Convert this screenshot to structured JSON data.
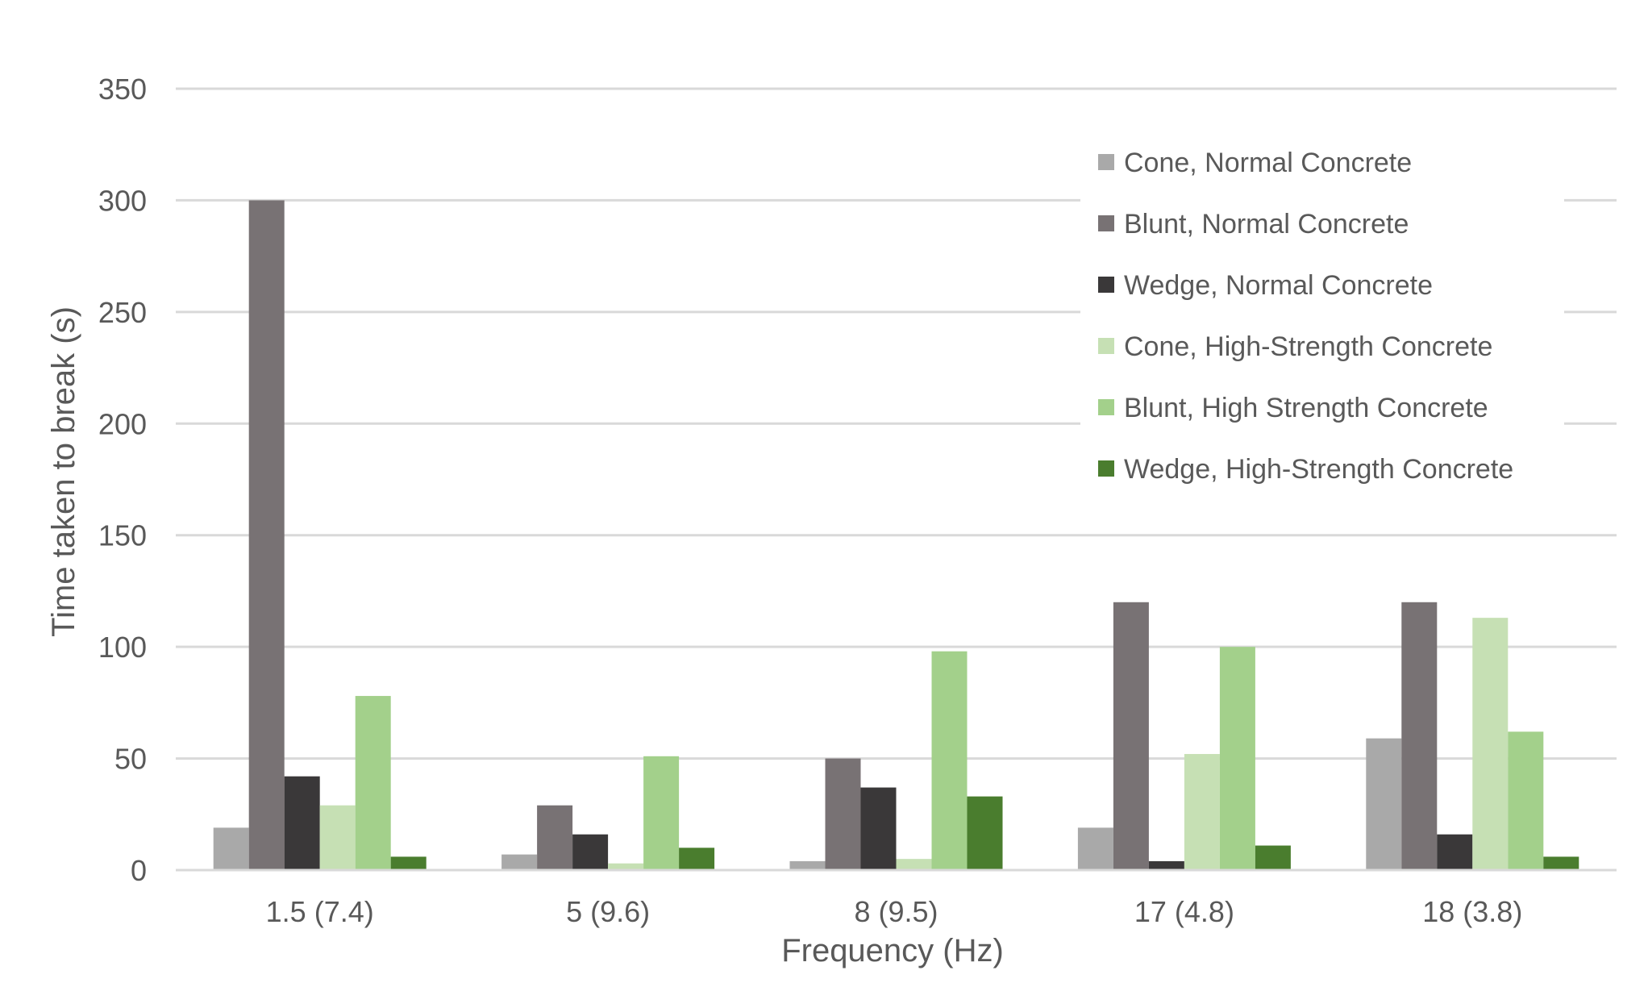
{
  "chart_data": {
    "type": "bar",
    "title": "",
    "xlabel": "Frequency (Hz)",
    "ylabel": "Time taken to break (s)",
    "ylim": [
      0,
      350
    ],
    "yticks": [
      0,
      50,
      100,
      150,
      200,
      250,
      300,
      350
    ],
    "grid": true,
    "legend_position": "top-right",
    "categories": [
      "1.5 (7.4)",
      "5 (9.6)",
      "8 (9.5)",
      "17 (4.8)",
      "18 (3.8)"
    ],
    "series": [
      {
        "name": "Cone, Normal Concrete",
        "color": "#a9a9a9",
        "values": [
          19,
          7,
          4,
          19,
          59
        ]
      },
      {
        "name": "Blunt, Normal Concrete",
        "color": "#787274",
        "values": [
          300,
          29,
          50,
          120,
          120
        ]
      },
      {
        "name": "Wedge, Normal Concrete",
        "color": "#3a3839",
        "values": [
          42,
          16,
          37,
          4,
          16
        ]
      },
      {
        "name": "Cone, High-Strength Concrete",
        "color": "#c6e0b4",
        "values": [
          29,
          3,
          5,
          52,
          113
        ]
      },
      {
        "name": "Blunt, High Strength Concrete",
        "color": "#a3d08b",
        "values": [
          78,
          51,
          98,
          100,
          62
        ]
      },
      {
        "name": "Wedge, High-Strength Concrete",
        "color": "#4a7d2e",
        "values": [
          6,
          10,
          33,
          11,
          6
        ]
      }
    ]
  }
}
